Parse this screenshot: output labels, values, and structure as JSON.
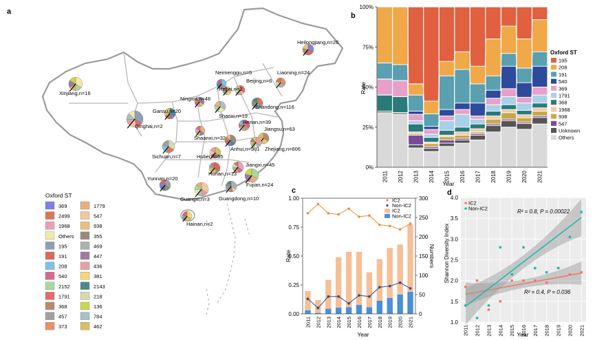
{
  "panels": {
    "a": {
      "label": "a",
      "legend_title": "Oxford ST",
      "legend_items": [
        {
          "name": "369",
          "color": "#7f7fe8"
        },
        {
          "name": "2499",
          "color": "#d9785a"
        },
        {
          "name": "1968",
          "color": "#e8a0b8"
        },
        {
          "name": "Others",
          "color": "#f2e8a8"
        },
        {
          "name": "195",
          "color": "#8ea0b8"
        },
        {
          "name": "191",
          "color": "#d96a5c"
        },
        {
          "name": "208",
          "color": "#7fc0e8"
        },
        {
          "name": "540",
          "color": "#d96a8c"
        },
        {
          "name": "2152",
          "color": "#a8d8a0"
        },
        {
          "name": "1791",
          "color": "#e86a6a"
        },
        {
          "name": "368",
          "color": "#b88a6a"
        },
        {
          "name": "457",
          "color": "#a0a0a0"
        },
        {
          "name": "373",
          "color": "#e8906a"
        },
        {
          "name": "1779",
          "color": "#e8b07a"
        },
        {
          "name": "547",
          "color": "#f2c8a0"
        },
        {
          "name": "938",
          "color": "#e8c080"
        },
        {
          "name": "355",
          "color": "#9a8a7a"
        },
        {
          "name": "469",
          "color": "#b0b0b0"
        },
        {
          "name": "447",
          "color": "#a07aa0"
        },
        {
          "name": "436",
          "color": "#e8a0a0"
        },
        {
          "name": "381",
          "color": "#f2d878"
        },
        {
          "name": "2143",
          "color": "#4a8a8a"
        },
        {
          "name": "218",
          "color": "#d8d8b0"
        },
        {
          "name": "136",
          "color": "#c8d850"
        },
        {
          "name": "784",
          "color": "#a8c0c8"
        },
        {
          "name": "462",
          "color": "#d8c060"
        }
      ],
      "provinces": [
        {
          "name": "Heilongjiang,n=26"
        },
        {
          "name": "Xinjiang,n=16"
        },
        {
          "name": "Neimenggu,n=5"
        },
        {
          "name": "Beijing,n=6"
        },
        {
          "name": "Liaoning,n=24"
        },
        {
          "name": "Hebei,n=2"
        },
        {
          "name": "Ningxia,n=48"
        },
        {
          "name": "Gansu,n=20"
        },
        {
          "name": "Shanxi,n=19"
        },
        {
          "name": "Shandong,n=116"
        },
        {
          "name": "Qinghai,n=2"
        },
        {
          "name": "Henan,n=39"
        },
        {
          "name": "Jiangsu,n=63"
        },
        {
          "name": "Shaanxi,n=32"
        },
        {
          "name": "Anhui,n=301"
        },
        {
          "name": "Zhejiang,n=606"
        },
        {
          "name": "Sichuan,n=7"
        },
        {
          "name": "Hubei,n=55"
        },
        {
          "name": "Jiangxi,n=45"
        },
        {
          "name": "Hunan,n=13"
        },
        {
          "name": "Fujian,n=24"
        },
        {
          "name": "Yunnan,n=20"
        },
        {
          "name": "Guangxi,n=3"
        },
        {
          "name": "Guangdong,n=10"
        },
        {
          "name": "Hainan,n=2"
        }
      ]
    },
    "b": {
      "label": "b",
      "legend_title": "Oxford ST",
      "ylabel": "Rate",
      "xlabel": "Year",
      "yticks": [
        "0%",
        "25%",
        "50%",
        "75%",
        "100%"
      ]
    },
    "c": {
      "label": "c",
      "xlabel": "Year",
      "ylabel_left": "Rate",
      "ylabel_right": "Numbers",
      "yticks_left": [
        "0.00",
        "0.25",
        "0.50",
        "0.75",
        "1.00"
      ],
      "yticks_right": [
        "0",
        "50",
        "100",
        "150",
        "200",
        "250",
        "300"
      ]
    },
    "d": {
      "label": "d",
      "xlabel": "Year",
      "ylabel": "Shannon Diversity Index",
      "yticks": [
        "1.0",
        "1.5",
        "2.0",
        "2.5",
        "3.0",
        "3.5",
        "4.0"
      ],
      "annotation_nonic2": "R² = 0.8, P = 0.00022",
      "annotation_ic2": "R² = 0.4, P = 0.036"
    }
  },
  "chart_data": [
    {
      "panel": "b",
      "type": "area",
      "x": [
        "2011",
        "2012",
        "2013",
        "2014",
        "2015",
        "2016",
        "2017",
        "2018",
        "2019",
        "2020",
        "2021"
      ],
      "ylim": [
        0,
        1
      ],
      "legend_position": "right",
      "series": [
        {
          "name": "Others",
          "color": "#d9d9d9",
          "values": [
            0.34,
            0.33,
            0.12,
            0.1,
            0.13,
            0.15,
            0.17,
            0.22,
            0.25,
            0.26,
            0.27
          ]
        },
        {
          "name": "Unknown",
          "color": "#555555",
          "values": [
            0.01,
            0.01,
            0.02,
            0.02,
            0.02,
            0.02,
            0.03,
            0.04,
            0.04,
            0.04,
            0.04
          ]
        },
        {
          "name": "547",
          "color": "#7a4a9a",
          "values": [
            0.0,
            0.0,
            0.06,
            0.01,
            0.02,
            0.01,
            0.01,
            0.01,
            0.01,
            0.01,
            0.01
          ]
        },
        {
          "name": "938",
          "color": "#c8a84a",
          "values": [
            0.0,
            0.0,
            0.01,
            0.02,
            0.02,
            0.02,
            0.01,
            0.03,
            0.04,
            0.03,
            0.03
          ]
        },
        {
          "name": "1968",
          "color": "#f2c8a8",
          "values": [
            0.0,
            0.0,
            0.01,
            0.01,
            0.01,
            0.02,
            0.02,
            0.02,
            0.02,
            0.02,
            0.02
          ]
        },
        {
          "name": "368",
          "color": "#2a7a7a",
          "values": [
            0.1,
            0.1,
            0.05,
            0.03,
            0.03,
            0.03,
            0.03,
            0.03,
            0.03,
            0.03,
            0.03
          ]
        },
        {
          "name": "1791",
          "color": "#a8d0e8",
          "values": [
            0.0,
            0.0,
            0.02,
            0.02,
            0.06,
            0.08,
            0.03,
            0.04,
            0.05,
            0.05,
            0.05
          ]
        },
        {
          "name": "369",
          "color": "#e8a0c8",
          "values": [
            0.1,
            0.1,
            0.04,
            0.03,
            0.03,
            0.03,
            0.02,
            0.04,
            0.05,
            0.04,
            0.05
          ]
        },
        {
          "name": "540",
          "color": "#2e4a9a",
          "values": [
            0.0,
            0.0,
            0.02,
            0.02,
            0.04,
            0.04,
            0.08,
            0.05,
            0.14,
            0.1,
            0.13
          ]
        },
        {
          "name": "191",
          "color": "#5aa0b0",
          "values": [
            0.1,
            0.1,
            0.1,
            0.08,
            0.21,
            0.21,
            0.12,
            0.09,
            0.08,
            0.1,
            0.09
          ]
        },
        {
          "name": "208",
          "color": "#f0a848",
          "values": [
            0.35,
            0.36,
            0.07,
            0.08,
            0.09,
            0.11,
            0.11,
            0.23,
            0.17,
            0.2,
            0.2
          ]
        },
        {
          "name": "195",
          "color": "#e06040",
          "values": [
            0.0,
            0.0,
            0.48,
            0.6,
            0.34,
            0.28,
            0.37,
            0.2,
            0.12,
            0.22,
            0.08
          ]
        }
      ]
    },
    {
      "panel": "c",
      "type": "bar",
      "categories": [
        "2011",
        "2012",
        "2013",
        "2014",
        "2015",
        "2016",
        "2017",
        "2018",
        "2019",
        "2020",
        "2021"
      ],
      "ylim_left": [
        0,
        1
      ],
      "ylim_right": [
        0,
        300
      ],
      "legend_position": "top-right",
      "series": [
        {
          "name": "IC2",
          "kind": "line",
          "axis": "left",
          "color": "#f08a3a",
          "values": [
            0.87,
            0.95,
            0.87,
            0.86,
            0.91,
            0.84,
            0.85,
            0.77,
            0.76,
            0.73,
            0.78
          ]
        },
        {
          "name": "Non-IC2",
          "kind": "line",
          "axis": "left",
          "color": "#2a4a8a",
          "values": [
            0.13,
            0.05,
            0.15,
            0.15,
            0.09,
            0.16,
            0.15,
            0.23,
            0.24,
            0.27,
            0.22
          ]
        },
        {
          "name": "IC2",
          "kind": "bar",
          "axis": "right",
          "color": "#f6bf96",
          "values": [
            59,
            36,
            88,
            147,
            161,
            161,
            108,
            142,
            171,
            180,
            232
          ]
        },
        {
          "name": "Non-IC2",
          "kind": "bar",
          "axis": "right",
          "color": "#4a90d8",
          "values": [
            9,
            2,
            13,
            16,
            17,
            23,
            17,
            34,
            41,
            50,
            57
          ]
        }
      ]
    },
    {
      "panel": "d",
      "type": "scatter",
      "x": [
        2011,
        2012,
        2013,
        2014,
        2015,
        2016,
        2017,
        2018,
        2019,
        2020,
        2021
      ],
      "ylim": [
        1.0,
        4.0
      ],
      "legend_position": "top-left",
      "series": [
        {
          "name": "IC2",
          "color": "#f07a6a",
          "values": [
            1.85,
            2.0,
            1.3,
            1.5,
            2.0,
            2.0,
            2.0,
            1.95,
            2.3,
            2.15,
            2.2
          ],
          "fit": [
            1.67,
            2.18
          ]
        },
        {
          "name": "Non-IC2",
          "color": "#20b8b0",
          "values": [
            1.4,
            1.1,
            1.4,
            2.8,
            2.15,
            2.8,
            2.3,
            2.2,
            2.3,
            3.05,
            3.65
          ],
          "fit": [
            1.38,
            3.52
          ]
        }
      ]
    }
  ]
}
